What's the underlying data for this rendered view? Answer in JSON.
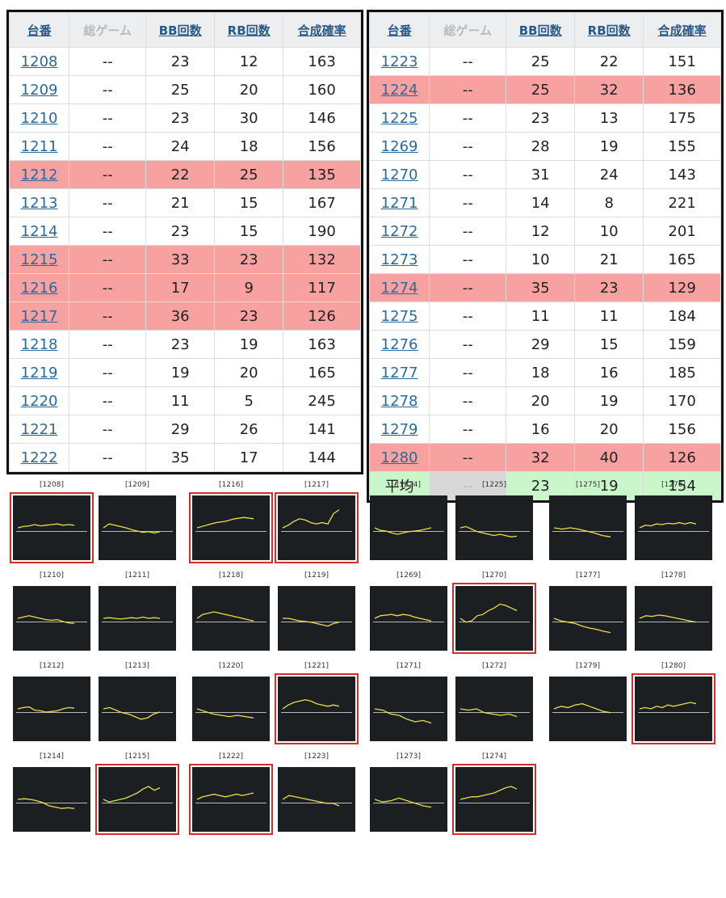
{
  "headers": {
    "machine": "台番",
    "games": "総ゲーム",
    "bb": "BB回数",
    "rb": "RB回数",
    "rate": "合成確率"
  },
  "left_table": [
    {
      "id": "1208",
      "games": "--",
      "bb": "23",
      "rb": "12",
      "rate": "163",
      "hit": false
    },
    {
      "id": "1209",
      "games": "--",
      "bb": "25",
      "rb": "20",
      "rate": "160",
      "hit": false
    },
    {
      "id": "1210",
      "games": "--",
      "bb": "23",
      "rb": "30",
      "rate": "146",
      "hit": false
    },
    {
      "id": "1211",
      "games": "--",
      "bb": "24",
      "rb": "18",
      "rate": "156",
      "hit": false
    },
    {
      "id": "1212",
      "games": "--",
      "bb": "22",
      "rb": "25",
      "rate": "135",
      "hit": true
    },
    {
      "id": "1213",
      "games": "--",
      "bb": "21",
      "rb": "15",
      "rate": "167",
      "hit": false
    },
    {
      "id": "1214",
      "games": "--",
      "bb": "23",
      "rb": "15",
      "rate": "190",
      "hit": false
    },
    {
      "id": "1215",
      "games": "--",
      "bb": "33",
      "rb": "23",
      "rate": "132",
      "hit": true
    },
    {
      "id": "1216",
      "games": "--",
      "bb": "17",
      "rb": "9",
      "rate": "117",
      "hit": true
    },
    {
      "id": "1217",
      "games": "--",
      "bb": "36",
      "rb": "23",
      "rate": "126",
      "hit": true
    },
    {
      "id": "1218",
      "games": "--",
      "bb": "23",
      "rb": "19",
      "rate": "163",
      "hit": false
    },
    {
      "id": "1219",
      "games": "--",
      "bb": "19",
      "rb": "20",
      "rate": "165",
      "hit": false
    },
    {
      "id": "1220",
      "games": "--",
      "bb": "11",
      "rb": "5",
      "rate": "245",
      "hit": false
    },
    {
      "id": "1221",
      "games": "--",
      "bb": "29",
      "rb": "26",
      "rate": "141",
      "hit": false
    },
    {
      "id": "1222",
      "games": "--",
      "bb": "35",
      "rb": "17",
      "rate": "144",
      "hit": false
    }
  ],
  "right_table": [
    {
      "id": "1223",
      "games": "--",
      "bb": "25",
      "rb": "22",
      "rate": "151",
      "hit": false
    },
    {
      "id": "1224",
      "games": "--",
      "bb": "25",
      "rb": "32",
      "rate": "136",
      "hit": true
    },
    {
      "id": "1225",
      "games": "--",
      "bb": "23",
      "rb": "13",
      "rate": "175",
      "hit": false
    },
    {
      "id": "1269",
      "games": "--",
      "bb": "28",
      "rb": "19",
      "rate": "155",
      "hit": false
    },
    {
      "id": "1270",
      "games": "--",
      "bb": "31",
      "rb": "24",
      "rate": "143",
      "hit": false
    },
    {
      "id": "1271",
      "games": "--",
      "bb": "14",
      "rb": "8",
      "rate": "221",
      "hit": false
    },
    {
      "id": "1272",
      "games": "--",
      "bb": "12",
      "rb": "10",
      "rate": "201",
      "hit": false
    },
    {
      "id": "1273",
      "games": "--",
      "bb": "10",
      "rb": "21",
      "rate": "165",
      "hit": false
    },
    {
      "id": "1274",
      "games": "--",
      "bb": "35",
      "rb": "23",
      "rate": "129",
      "hit": true
    },
    {
      "id": "1275",
      "games": "--",
      "bb": "11",
      "rb": "11",
      "rate": "184",
      "hit": false
    },
    {
      "id": "1276",
      "games": "--",
      "bb": "29",
      "rb": "15",
      "rate": "159",
      "hit": false
    },
    {
      "id": "1277",
      "games": "--",
      "bb": "18",
      "rb": "16",
      "rate": "185",
      "hit": false
    },
    {
      "id": "1278",
      "games": "--",
      "bb": "20",
      "rb": "19",
      "rate": "170",
      "hit": false
    },
    {
      "id": "1279",
      "games": "--",
      "bb": "16",
      "rb": "20",
      "rate": "156",
      "hit": false
    },
    {
      "id": "1280",
      "games": "--",
      "bb": "32",
      "rb": "40",
      "rate": "126",
      "hit": true
    }
  ],
  "average_row": {
    "label": "平均",
    "games": "--",
    "bb": "23",
    "rb": "19",
    "rate": "154"
  },
  "colors": {
    "hit_row": "#f7a1a1",
    "avg_row": "#c9f7c9",
    "graph_bg": "#1b1f22",
    "graph_line": "#e8e04a",
    "selected_border": "#d42b2b"
  },
  "graphs": [
    {
      "label": "[1208]",
      "sel": true,
      "pts": [
        0.5,
        0.48,
        0.47,
        0.45,
        0.47,
        0.46,
        0.45,
        0.44,
        0.46,
        0.45,
        0.46
      ]
    },
    {
      "label": "[1209]",
      "sel": false,
      "pts": [
        0.5,
        0.44,
        0.46,
        0.48,
        0.5,
        0.53,
        0.55,
        0.57,
        0.56,
        0.58,
        0.56
      ]
    },
    {
      "label": "[1216]",
      "sel": true,
      "pts": [
        0.5,
        0.46,
        0.42,
        0.4,
        0.36,
        0.34,
        0.36
      ]
    },
    {
      "label": "[1217]",
      "sel": true,
      "pts": [
        0.5,
        0.46,
        0.4,
        0.36,
        0.38,
        0.42,
        0.44,
        0.42,
        0.44,
        0.28,
        0.22
      ]
    },
    {
      "label": "[1224]",
      "sel": false,
      "pts": [
        0.5,
        0.54,
        0.55,
        0.58,
        0.6,
        0.58,
        0.56,
        0.55,
        0.54,
        0.52,
        0.5
      ]
    },
    {
      "label": "[1225]",
      "sel": false,
      "pts": [
        0.5,
        0.48,
        0.52,
        0.56,
        0.58,
        0.6,
        0.62,
        0.6,
        0.62,
        0.64,
        0.63
      ]
    },
    {
      "label": "[1275]",
      "sel": false,
      "pts": [
        0.5,
        0.52,
        0.5,
        0.52,
        0.55,
        0.58,
        0.62,
        0.64
      ]
    },
    {
      "label": "[1276]",
      "sel": false,
      "pts": [
        0.5,
        0.46,
        0.47,
        0.44,
        0.45,
        0.43,
        0.44,
        0.42,
        0.44,
        0.42,
        0.44
      ]
    },
    {
      "label": "[1210]",
      "sel": false,
      "pts": [
        0.5,
        0.48,
        0.46,
        0.48,
        0.5,
        0.52,
        0.53,
        0.52,
        0.55,
        0.57,
        0.58
      ]
    },
    {
      "label": "[1211]",
      "sel": false,
      "pts": [
        0.5,
        0.49,
        0.5,
        0.51,
        0.5,
        0.49,
        0.5,
        0.48,
        0.5,
        0.49,
        0.5
      ]
    },
    {
      "label": "[1218]",
      "sel": false,
      "pts": [
        0.5,
        0.44,
        0.42,
        0.4,
        0.42,
        0.44,
        0.46,
        0.48,
        0.5,
        0.52,
        0.54
      ]
    },
    {
      "label": "[1219]",
      "sel": false,
      "pts": [
        0.5,
        0.5,
        0.52,
        0.54,
        0.55,
        0.56,
        0.58,
        0.6,
        0.62,
        0.58,
        0.56
      ]
    },
    {
      "label": "[1269]",
      "sel": false,
      "pts": [
        0.5,
        0.46,
        0.45,
        0.44,
        0.46,
        0.44,
        0.45,
        0.48,
        0.5,
        0.52,
        0.54
      ]
    },
    {
      "label": "[1270]",
      "sel": true,
      "pts": [
        0.5,
        0.56,
        0.54,
        0.46,
        0.44,
        0.38,
        0.34,
        0.28,
        0.3,
        0.34,
        0.38
      ]
    },
    {
      "label": "[1277]",
      "sel": false,
      "pts": [
        0.5,
        0.54,
        0.56,
        0.58,
        0.62,
        0.65,
        0.67,
        0.7,
        0.72
      ]
    },
    {
      "label": "[1278]",
      "sel": false,
      "pts": [
        0.5,
        0.46,
        0.47,
        0.45,
        0.46,
        0.48,
        0.5,
        0.52,
        0.54,
        0.56
      ]
    },
    {
      "label": "[1212]",
      "sel": false,
      "pts": [
        0.5,
        0.48,
        0.47,
        0.52,
        0.53,
        0.55,
        0.54,
        0.53,
        0.5,
        0.48,
        0.49
      ]
    },
    {
      "label": "[1213]",
      "sel": false,
      "pts": [
        0.5,
        0.48,
        0.52,
        0.56,
        0.58,
        0.62,
        0.66,
        0.64,
        0.58,
        0.55
      ]
    },
    {
      "label": "[1220]",
      "sel": false,
      "pts": [
        0.5,
        0.54,
        0.58,
        0.6,
        0.62,
        0.6,
        0.62,
        0.64
      ]
    },
    {
      "label": "[1221]",
      "sel": true,
      "pts": [
        0.5,
        0.44,
        0.4,
        0.38,
        0.36,
        0.38,
        0.42,
        0.44,
        0.46,
        0.44,
        0.46
      ]
    },
    {
      "label": "[1271]",
      "sel": false,
      "pts": [
        0.5,
        0.52,
        0.58,
        0.6,
        0.66,
        0.7,
        0.68,
        0.72
      ]
    },
    {
      "label": "[1272]",
      "sel": false,
      "pts": [
        0.5,
        0.52,
        0.5,
        0.56,
        0.58,
        0.6,
        0.58,
        0.62
      ]
    },
    {
      "label": "[1279]",
      "sel": false,
      "pts": [
        0.5,
        0.46,
        0.48,
        0.44,
        0.42,
        0.46,
        0.5,
        0.54,
        0.56
      ]
    },
    {
      "label": "[1280]",
      "sel": true,
      "pts": [
        0.5,
        0.48,
        0.5,
        0.46,
        0.48,
        0.44,
        0.46,
        0.44,
        0.42,
        0.4,
        0.42
      ]
    },
    {
      "label": "[1214]",
      "sel": false,
      "pts": [
        0.5,
        0.49,
        0.5,
        0.52,
        0.55,
        0.6,
        0.62,
        0.64,
        0.63,
        0.64
      ]
    },
    {
      "label": "[1215]",
      "sel": true,
      "pts": [
        0.5,
        0.54,
        0.52,
        0.5,
        0.48,
        0.44,
        0.4,
        0.34,
        0.3,
        0.36,
        0.32
      ]
    },
    {
      "label": "[1222]",
      "sel": true,
      "pts": [
        0.5,
        0.46,
        0.44,
        0.42,
        0.44,
        0.46,
        0.44,
        0.42,
        0.44,
        0.42,
        0.4
      ]
    },
    {
      "label": "[1223]",
      "sel": false,
      "pts": [
        0.5,
        0.44,
        0.46,
        0.48,
        0.5,
        0.52,
        0.54,
        0.56,
        0.56,
        0.6
      ]
    },
    {
      "label": "[1273]",
      "sel": false,
      "pts": [
        0.5,
        0.54,
        0.52,
        0.48,
        0.52,
        0.56,
        0.6,
        0.62
      ]
    },
    {
      "label": "[1274]",
      "sel": true,
      "pts": [
        0.5,
        0.48,
        0.46,
        0.46,
        0.44,
        0.42,
        0.4,
        0.36,
        0.32,
        0.3,
        0.34
      ]
    }
  ]
}
